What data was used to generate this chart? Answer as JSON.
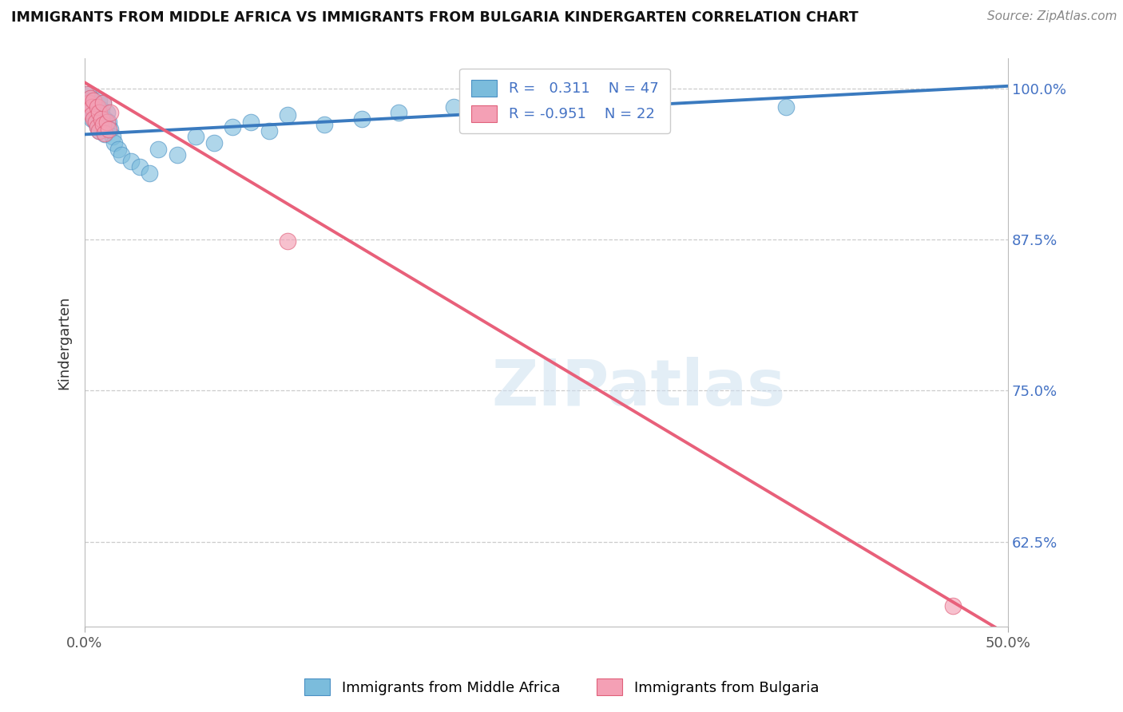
{
  "title": "IMMIGRANTS FROM MIDDLE AFRICA VS IMMIGRANTS FROM BULGARIA KINDERGARTEN CORRELATION CHART",
  "source": "Source: ZipAtlas.com",
  "ylabel": "Kindergarten",
  "watermark": "ZIPatlas",
  "xlim": [
    0.0,
    0.5
  ],
  "ylim": [
    0.555,
    1.025
  ],
  "ytick_values": [
    1.0,
    0.875,
    0.75,
    0.625
  ],
  "ytick_labels": [
    "100.0%",
    "87.5%",
    "75.0%",
    "62.5%"
  ],
  "xtick_values": [
    0.0,
    0.5
  ],
  "xtick_labels": [
    "0.0%",
    "50.0%"
  ],
  "blue_R": 0.311,
  "blue_N": 47,
  "pink_R": -0.951,
  "pink_N": 22,
  "blue_fill": "#7bbcdc",
  "blue_edge": "#4a90c4",
  "pink_fill": "#f4a0b5",
  "pink_edge": "#e0607a",
  "blue_line_color": "#3a7abf",
  "pink_line_color": "#e8607a",
  "legend_text_color": "#4472c4",
  "tick_color": "#4472c4",
  "grid_color": "#cccccc",
  "blue_line_x0": 0.0,
  "blue_line_x1": 0.5,
  "blue_line_y0": 0.962,
  "blue_line_y1": 1.002,
  "pink_line_x0": 0.0,
  "pink_line_x1": 0.5,
  "pink_line_y0": 1.005,
  "pink_line_y1": 0.548,
  "blue_scatter_x": [
    0.001,
    0.002,
    0.002,
    0.003,
    0.003,
    0.004,
    0.004,
    0.005,
    0.005,
    0.006,
    0.006,
    0.007,
    0.007,
    0.008,
    0.008,
    0.009,
    0.009,
    0.01,
    0.01,
    0.011,
    0.011,
    0.012,
    0.013,
    0.014,
    0.015,
    0.016,
    0.018,
    0.02,
    0.025,
    0.03,
    0.035,
    0.04,
    0.05,
    0.06,
    0.07,
    0.08,
    0.09,
    0.1,
    0.11,
    0.13,
    0.15,
    0.17,
    0.2,
    0.23,
    0.27,
    0.31,
    0.38
  ],
  "blue_scatter_y": [
    0.99,
    0.985,
    0.995,
    0.98,
    0.992,
    0.975,
    0.988,
    0.978,
    0.982,
    0.972,
    0.985,
    0.968,
    0.979,
    0.965,
    0.99,
    0.975,
    0.983,
    0.97,
    0.988,
    0.962,
    0.975,
    0.98,
    0.972,
    0.966,
    0.96,
    0.955,
    0.95,
    0.945,
    0.94,
    0.935,
    0.93,
    0.95,
    0.945,
    0.96,
    0.955,
    0.968,
    0.972,
    0.965,
    0.978,
    0.97,
    0.975,
    0.98,
    0.985,
    0.988,
    0.982,
    0.978,
    0.985
  ],
  "pink_scatter_x": [
    0.001,
    0.002,
    0.002,
    0.003,
    0.004,
    0.004,
    0.005,
    0.005,
    0.006,
    0.007,
    0.007,
    0.008,
    0.008,
    0.009,
    0.01,
    0.01,
    0.011,
    0.012,
    0.013,
    0.014,
    0.11,
    0.47
  ],
  "pink_scatter_y": [
    0.995,
    0.988,
    0.982,
    0.992,
    0.985,
    0.978,
    0.975,
    0.99,
    0.972,
    0.985,
    0.968,
    0.98,
    0.965,
    0.975,
    0.97,
    0.988,
    0.963,
    0.972,
    0.966,
    0.98,
    0.874,
    0.572
  ]
}
